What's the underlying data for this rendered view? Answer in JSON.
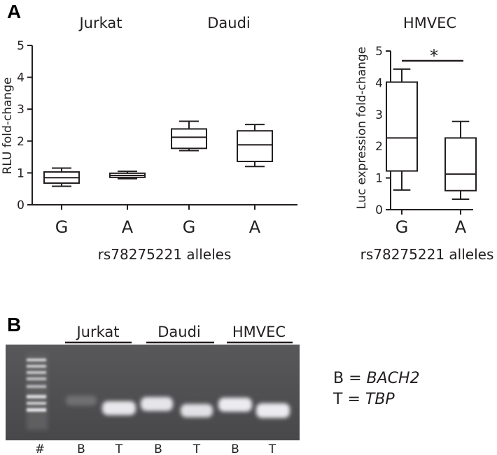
{
  "panels": {
    "a": "A",
    "b": "B"
  },
  "chart_data": [
    {
      "type": "box",
      "groups": [
        "Jurkat",
        "Daudi"
      ],
      "categories": [
        "G",
        "A",
        "G",
        "A"
      ],
      "ylabel": "RLU fold-change",
      "xlabel": "rs78275221 alleles",
      "ylim": [
        0,
        5
      ],
      "yticks": [
        "0",
        "1",
        "2",
        "3",
        "4",
        "5"
      ],
      "boxes": [
        {
          "group": "Jurkat",
          "allele": "G",
          "min": 0.58,
          "q1": 0.68,
          "median": 0.85,
          "q3": 1.03,
          "max": 1.15
        },
        {
          "group": "Jurkat",
          "allele": "A",
          "min": 0.82,
          "q1": 0.86,
          "median": 0.92,
          "q3": 0.99,
          "max": 1.05
        },
        {
          "group": "Daudi",
          "allele": "G",
          "min": 1.7,
          "q1": 1.77,
          "median": 2.12,
          "q3": 2.38,
          "max": 2.62
        },
        {
          "group": "Daudi",
          "allele": "A",
          "min": 1.2,
          "q1": 1.36,
          "median": 1.88,
          "q3": 2.32,
          "max": 2.52
        }
      ]
    },
    {
      "type": "box",
      "groups": [
        "HMVEC"
      ],
      "categories": [
        "G",
        "A"
      ],
      "ylabel": "Luc expression fold-change",
      "xlabel": "rs78275221 alleles",
      "ylim": [
        0,
        5
      ],
      "yticks": [
        "0",
        "1",
        "2",
        "3",
        "4",
        "5"
      ],
      "significance": "*",
      "boxes": [
        {
          "group": "HMVEC",
          "allele": "G",
          "min": 0.62,
          "q1": 1.22,
          "median": 2.26,
          "q3": 4.02,
          "max": 4.43
        },
        {
          "group": "HMVEC",
          "allele": "A",
          "min": 0.33,
          "q1": 0.6,
          "median": 1.12,
          "q3": 2.26,
          "max": 2.78
        }
      ]
    }
  ],
  "gel": {
    "groups": [
      "Jurkat",
      "Daudi",
      "HMVEC"
    ],
    "lanes": [
      "#",
      "B",
      "T",
      "B",
      "T",
      "B",
      "T"
    ],
    "legend": [
      {
        "key": "B",
        "eq": " = ",
        "gene": "BACH2"
      },
      {
        "key": "T",
        "eq": " = ",
        "gene": "TBP"
      }
    ]
  },
  "colors": {
    "ink": "#231f20",
    "gel_bg": "#4d4d4f",
    "band": "#f0f0f2"
  }
}
